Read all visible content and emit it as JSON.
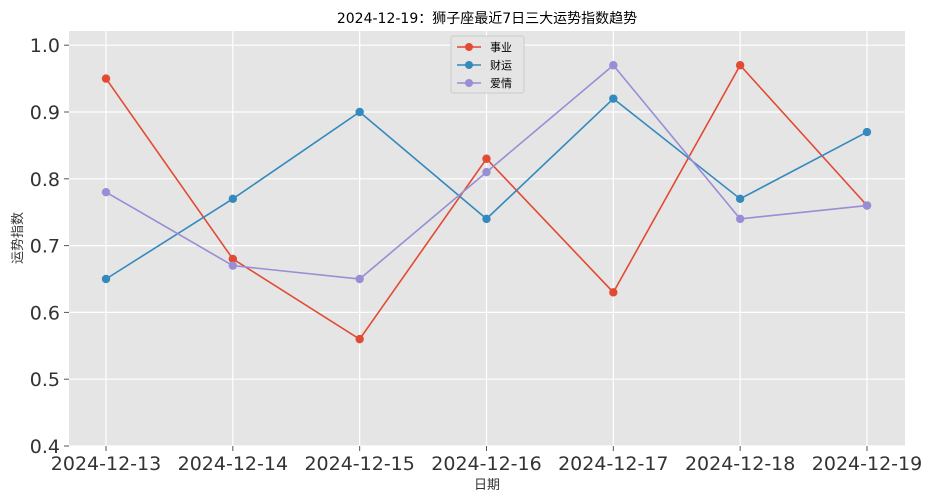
{
  "chart_data": {
    "type": "line",
    "title": "2024-12-19：狮子座最近7日三大运势指数趋势",
    "xlabel": "日期",
    "ylabel": "运势指数",
    "categories": [
      "2024-12-13",
      "2024-12-14",
      "2024-12-15",
      "2024-12-16",
      "2024-12-17",
      "2024-12-18",
      "2024-12-19"
    ],
    "yticks": [
      "0.4",
      "0.5",
      "0.6",
      "0.7",
      "0.8",
      "0.9",
      "1.0"
    ],
    "ylim": [
      0.4,
      1.02
    ],
    "grid": true,
    "legend_position": "top-center",
    "series": [
      {
        "name": "事业",
        "color": "#E24A33",
        "values": [
          0.95,
          0.68,
          0.56,
          0.83,
          0.63,
          0.97,
          0.76
        ]
      },
      {
        "name": "财运",
        "color": "#348ABD",
        "values": [
          0.65,
          0.77,
          0.9,
          0.74,
          0.92,
          0.77,
          0.87
        ]
      },
      {
        "name": "爱情",
        "color": "#988ED5",
        "values": [
          0.78,
          0.67,
          0.65,
          0.81,
          0.97,
          0.74,
          0.76
        ]
      }
    ]
  }
}
